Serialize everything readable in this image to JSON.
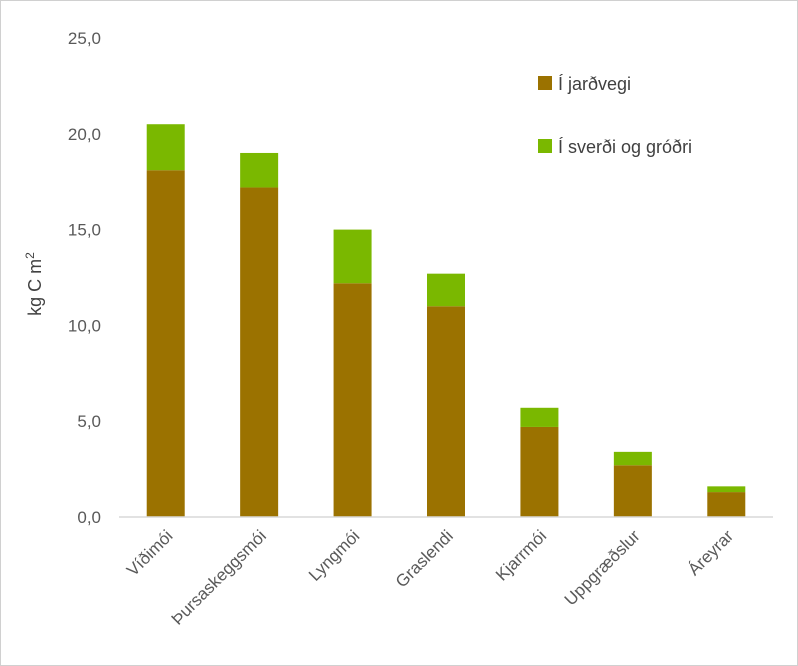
{
  "chart_data": {
    "type": "bar",
    "stacked": true,
    "categories": [
      "Víðimói",
      "Þursaskeggsmói",
      "Lyngmói",
      "Graslendi",
      "Kjarrmói",
      "Uppgræðslur",
      "Áreyrar"
    ],
    "series": [
      {
        "name": "Í jarðvegi",
        "color": "#9b7200",
        "values": [
          18.1,
          17.2,
          12.2,
          11.0,
          4.7,
          2.7,
          1.3
        ]
      },
      {
        "name": "Í sverði og gróðri",
        "color": "#7ab800",
        "values": [
          2.4,
          1.8,
          2.8,
          1.7,
          1.0,
          0.7,
          0.3
        ]
      }
    ],
    "ylabel_main": "kg C m",
    "ylabel_sup": "2",
    "ylim": [
      0,
      25
    ],
    "yticks": [
      "0,0",
      "5,0",
      "10,0",
      "15,0",
      "20,0",
      "25,0"
    ],
    "legend_position": "top-right",
    "grid": false
  }
}
